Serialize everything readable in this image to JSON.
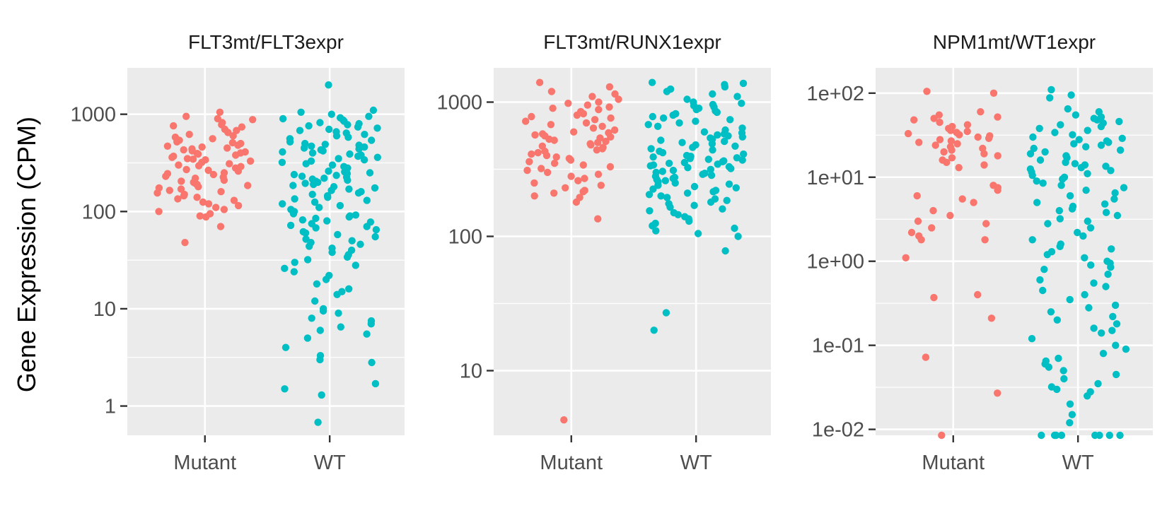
{
  "figure": {
    "ylabel": "Gene Expression (CPM)",
    "colors": {
      "Mutant": "#F8766D",
      "WT": "#00BFC4",
      "panel_bg": "#EBEBEB",
      "grid": "#FFFFFF",
      "tick_text": "#4D4D4D"
    }
  },
  "chart_data": [
    {
      "type": "scatter",
      "title": "FLT3mt/FLT3expr",
      "xlabel": "",
      "ylabel": "Gene Expression (CPM)",
      "categories": [
        "Mutant",
        "WT"
      ],
      "y_scale": "log10",
      "ylim": [
        0.5,
        3000
      ],
      "yticks": [
        1,
        10,
        100,
        1000
      ],
      "ytick_labels": [
        "1",
        "10",
        "100",
        "1000"
      ],
      "grid": true,
      "legend": "none",
      "points_note": "jittered strip plot; values estimated from the log axis",
      "series": [
        {
          "name": "Mutant",
          "values": [
            1050,
            950,
            900,
            880,
            820,
            780,
            760,
            740,
            700,
            680,
            650,
            620,
            600,
            580,
            560,
            540,
            520,
            510,
            500,
            480,
            470,
            460,
            450,
            440,
            430,
            420,
            410,
            400,
            395,
            390,
            380,
            370,
            360,
            350,
            345,
            340,
            330,
            320,
            310,
            300,
            295,
            290,
            280,
            270,
            265,
            260,
            250,
            245,
            240,
            230,
            225,
            220,
            210,
            205,
            200,
            195,
            190,
            185,
            180,
            175,
            170,
            165,
            160,
            155,
            150,
            145,
            140,
            135,
            130,
            125,
            120,
            115,
            110,
            105,
            100,
            95,
            90,
            88,
            70,
            48
          ]
        },
        {
          "name": "WT",
          "values": [
            2000,
            1100,
            1050,
            1000,
            950,
            920,
            900,
            870,
            850,
            820,
            800,
            780,
            760,
            740,
            720,
            700,
            680,
            660,
            640,
            620,
            600,
            580,
            560,
            540,
            520,
            500,
            490,
            480,
            470,
            460,
            450,
            440,
            430,
            420,
            410,
            400,
            390,
            380,
            370,
            360,
            350,
            340,
            330,
            320,
            310,
            300,
            290,
            280,
            270,
            260,
            255,
            250,
            245,
            240,
            235,
            230,
            225,
            220,
            215,
            210,
            205,
            200,
            195,
            190,
            185,
            180,
            175,
            170,
            165,
            160,
            155,
            150,
            145,
            140,
            135,
            130,
            125,
            120,
            115,
            110,
            105,
            100,
            98,
            95,
            92,
            90,
            88,
            85,
            82,
            80,
            78,
            75,
            72,
            70,
            68,
            65,
            62,
            60,
            58,
            55,
            52,
            50,
            48,
            46,
            44,
            42,
            40,
            38,
            36,
            34,
            32,
            30,
            28,
            26,
            24,
            22,
            20,
            18,
            16,
            15,
            14,
            12,
            10,
            9.5,
            9,
            8,
            7.5,
            7,
            6.5,
            6,
            5.5,
            5,
            4,
            3.3,
            3,
            2.8,
            1.7,
            1.5,
            1.3,
            0.68
          ]
        }
      ]
    },
    {
      "type": "scatter",
      "title": "FLT3mt/RUNX1expr",
      "xlabel": "",
      "ylabel": "",
      "categories": [
        "Mutant",
        "WT"
      ],
      "y_scale": "log10",
      "ylim": [
        3.3,
        1800
      ],
      "yticks": [
        10,
        100,
        1000
      ],
      "ytick_labels": [
        "10",
        "100",
        "1000"
      ],
      "grid": true,
      "legend": "none",
      "points_note": "jittered strip plot; values estimated from the log axis",
      "series": [
        {
          "name": "Mutant",
          "values": [
            1400,
            1300,
            1200,
            1150,
            1100,
            1050,
            1000,
            980,
            950,
            920,
            900,
            880,
            850,
            820,
            800,
            780,
            760,
            740,
            720,
            700,
            680,
            660,
            640,
            620,
            600,
            590,
            580,
            570,
            560,
            550,
            540,
            530,
            520,
            510,
            500,
            490,
            480,
            470,
            460,
            450,
            440,
            430,
            420,
            410,
            400,
            390,
            380,
            370,
            360,
            350,
            340,
            330,
            320,
            310,
            300,
            290,
            280,
            270,
            260,
            250,
            240,
            230,
            220,
            215,
            210,
            200,
            195,
            180,
            135,
            4.3
          ]
        },
        {
          "name": "WT",
          "values": [
            1400,
            1380,
            1350,
            1300,
            1250,
            1200,
            1150,
            1100,
            1050,
            1000,
            980,
            960,
            940,
            920,
            900,
            880,
            860,
            840,
            820,
            800,
            780,
            760,
            740,
            720,
            700,
            680,
            660,
            640,
            620,
            600,
            590,
            580,
            570,
            560,
            550,
            540,
            530,
            520,
            510,
            500,
            490,
            480,
            470,
            460,
            450,
            440,
            430,
            420,
            410,
            400,
            395,
            390,
            385,
            380,
            375,
            370,
            365,
            360,
            355,
            350,
            345,
            340,
            335,
            330,
            325,
            320,
            315,
            310,
            305,
            300,
            295,
            290,
            285,
            280,
            275,
            270,
            265,
            260,
            255,
            250,
            245,
            240,
            235,
            230,
            225,
            220,
            215,
            210,
            205,
            200,
            195,
            190,
            185,
            180,
            175,
            170,
            165,
            160,
            155,
            150,
            145,
            140,
            135,
            130,
            125,
            120,
            115,
            110,
            105,
            100,
            78,
            27,
            20
          ]
        }
      ]
    },
    {
      "type": "scatter",
      "title": "NPM1mt/WT1expr",
      "xlabel": "",
      "ylabel": "",
      "categories": [
        "Mutant",
        "WT"
      ],
      "y_scale": "log10",
      "ylim": [
        0.0085,
        200
      ],
      "yticks": [
        0.01,
        0.1,
        1,
        10,
        100
      ],
      "ytick_labels": [
        "1e-02",
        "1e-01",
        "1e+00",
        "1e+01",
        "1e+02"
      ],
      "grid": true,
      "legend": "none",
      "points_note": "jittered strip plot; values estimated from the log axis",
      "series": [
        {
          "name": "Mutant",
          "values": [
            105,
            100,
            60,
            55,
            52,
            50,
            48,
            45,
            42,
            40,
            38,
            36,
            35,
            34,
            33,
            32,
            31,
            30,
            29,
            28,
            27,
            26,
            25,
            24,
            23,
            22,
            21,
            20,
            19,
            18,
            17,
            16,
            15,
            14,
            13,
            8,
            7.5,
            7,
            6,
            5.5,
            5,
            4,
            3.5,
            3,
            2.8,
            2.5,
            2.2,
            2,
            1.8,
            1.8,
            1.1,
            0.4,
            0.37,
            0.21,
            0.072,
            0.027,
            0.008
          ]
        },
        {
          "name": "WT",
          "values": [
            110,
            95,
            88,
            65,
            60,
            55,
            52,
            50,
            48,
            46,
            44,
            42,
            40,
            38,
            36,
            34,
            32,
            30,
            29,
            28,
            27,
            26,
            25,
            24,
            23,
            22,
            21,
            20,
            19,
            18,
            17,
            16,
            15,
            14.5,
            14,
            13.5,
            13,
            12.5,
            12,
            11.5,
            11,
            10.5,
            10,
            9.5,
            9,
            8.5,
            8,
            7.5,
            7,
            6.5,
            6,
            5.5,
            5,
            4.8,
            4.5,
            4.2,
            4,
            3.8,
            3.5,
            3.2,
            3,
            2.8,
            2.5,
            2.2,
            2,
            1.8,
            1.6,
            1.5,
            1.4,
            1.3,
            1.2,
            1.1,
            1,
            0.95,
            0.9,
            0.85,
            0.8,
            0.7,
            0.6,
            0.55,
            0.5,
            0.45,
            0.4,
            0.35,
            0.3,
            0.28,
            0.25,
            0.22,
            0.2,
            0.18,
            0.16,
            0.15,
            0.14,
            0.12,
            0.1,
            0.09,
            0.08,
            0.07,
            0.065,
            0.06,
            0.055,
            0.05,
            0.045,
            0.04,
            0.035,
            0.032,
            0.03,
            0.028,
            0.025,
            0.02,
            0.015,
            0.012,
            0.008,
            0.008,
            0.008,
            0.008,
            0.008,
            0.008,
            0.008,
            0.008
          ]
        }
      ]
    }
  ]
}
